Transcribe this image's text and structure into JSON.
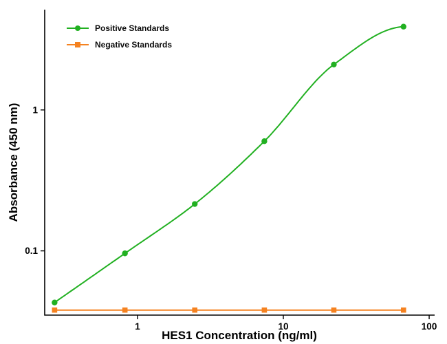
{
  "figure": {
    "background": "#ffffff"
  },
  "chart_data": {
    "type": "line",
    "title": "",
    "xlabel": "HES1 Concentration (ng/ml)",
    "ylabel": "Absorbance (450 nm)",
    "x_scale": "log",
    "y_scale": "log",
    "xlim": [
      0.231,
      109
    ],
    "ylim": [
      0.035,
      5.15
    ],
    "x_ticks": [
      1,
      10,
      100
    ],
    "x_tick_labels": [
      "1",
      "10",
      "100"
    ],
    "y_ticks": [
      0.1,
      1
    ],
    "y_tick_labels": [
      "0.1",
      "1"
    ],
    "grid": false,
    "legend_position": "top-left-inside",
    "axis_color": "#000000",
    "series": [
      {
        "name": "Positive Standards",
        "color": "#21b021",
        "marker": "circle",
        "line_width": 2,
        "x": [
          0.27,
          0.82,
          2.47,
          7.41,
          22.2,
          66.7
        ],
        "y": [
          0.043,
          0.096,
          0.215,
          0.6,
          2.1,
          3.9
        ],
        "plateau": 3.95
      },
      {
        "name": "Negative Standards",
        "color": "#f58220",
        "marker": "square",
        "line_width": 2,
        "x": [
          0.27,
          0.82,
          2.47,
          7.41,
          22.2,
          66.7
        ],
        "y": [
          0.038,
          0.038,
          0.038,
          0.038,
          0.038,
          0.038
        ]
      }
    ]
  }
}
